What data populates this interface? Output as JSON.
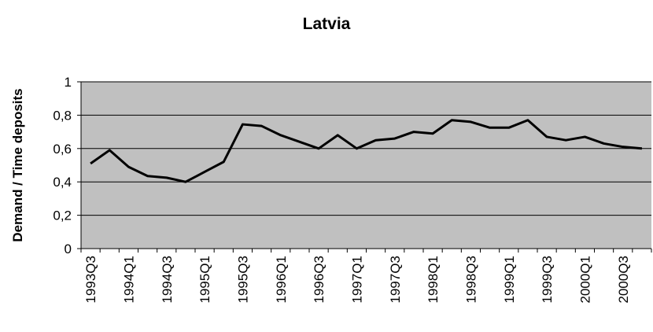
{
  "chart_data": {
    "type": "line",
    "title": "Latvia",
    "y_label": "Demand / Time deposits",
    "categories": [
      "1993Q3",
      null,
      "1994Q1",
      null,
      "1994Q3",
      null,
      "1995Q1",
      null,
      "1995Q3",
      null,
      "1996Q1",
      null,
      "1996Q3",
      null,
      "1997Q1",
      null,
      "1997Q3",
      null,
      "1998Q1",
      null,
      "1998Q3",
      null,
      "1999Q1",
      null,
      "1999Q3",
      null,
      "2000Q1",
      null,
      "2000Q3",
      null
    ],
    "series": [
      {
        "name": "Latvia",
        "color": "#000000",
        "values": [
          0.51,
          0.59,
          0.49,
          0.435,
          0.425,
          0.4,
          0.46,
          0.52,
          0.745,
          0.735,
          0.68,
          0.64,
          0.6,
          0.68,
          0.6,
          0.65,
          0.66,
          0.7,
          0.69,
          0.77,
          0.76,
          0.725,
          0.725,
          0.77,
          0.67,
          0.65,
          0.67,
          0.63,
          0.61,
          0.6
        ]
      }
    ],
    "ylim": [
      0,
      1
    ],
    "yticks": [
      0,
      {
        "value": 0.2,
        "label": "0,2"
      },
      {
        "value": 0.4,
        "label": "0,4"
      },
      {
        "value": 0.6,
        "label": "0,6"
      },
      {
        "value": 0.8,
        "label": "0,8"
      },
      1
    ],
    "grid": true,
    "plot_background": "#c0c0c0"
  }
}
